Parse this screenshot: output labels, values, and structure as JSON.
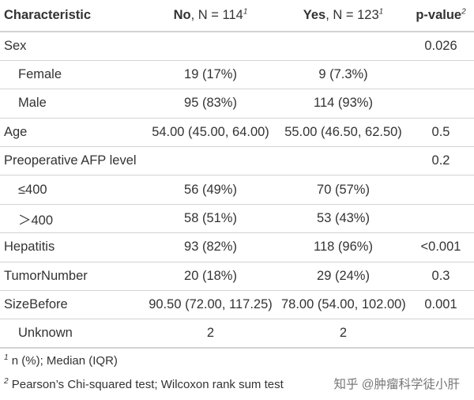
{
  "header": {
    "characteristic": "Characteristic",
    "no_bold": "No",
    "no_rest": ", N = 114",
    "no_sup": "1",
    "yes_bold": "Yes",
    "yes_rest": ", N = 123",
    "yes_sup": "1",
    "pvalue": "p-value",
    "pvalue_sup": "2"
  },
  "rows": [
    {
      "label": "Sex",
      "no": "",
      "yes": "",
      "p": "0.026"
    },
    {
      "label": "Female",
      "no": "19 (17%)",
      "yes": "9 (7.3%)",
      "p": ""
    },
    {
      "label": "Male",
      "no": "95 (83%)",
      "yes": "114 (93%)",
      "p": ""
    },
    {
      "label": "Age",
      "no": "54.00 (45.00, 64.00)",
      "yes": "55.00 (46.50, 62.50)",
      "p": "0.5"
    },
    {
      "label": "Preoperative AFP level",
      "no": "",
      "yes": "",
      "p": "0.2"
    },
    {
      "label": "≤400",
      "no": "56 (49%)",
      "yes": "70 (57%)",
      "p": ""
    },
    {
      "label": "＞400",
      "no": "58 (51%)",
      "yes": "53 (43%)",
      "p": ""
    },
    {
      "label": "Hepatitis",
      "no": "93 (82%)",
      "yes": "118 (96%)",
      "p": "<0.001"
    },
    {
      "label": "TumorNumber",
      "no": "20 (18%)",
      "yes": "29 (24%)",
      "p": "0.3"
    },
    {
      "label": "SizeBefore",
      "no": "90.50 (72.00, 117.25)",
      "yes": "78.00 (54.00, 102.00)",
      "p": "0.001"
    },
    {
      "label": "Unknown",
      "no": "2",
      "yes": "2",
      "p": ""
    }
  ],
  "footnotes": [
    {
      "mark": "1",
      "text": "n (%); Median (IQR)"
    },
    {
      "mark": "2",
      "text": "Pearson’s Chi-squared test; Wilcoxon rank sum test"
    }
  ],
  "watermark": "知乎 @肿瘤科学徒小肝"
}
